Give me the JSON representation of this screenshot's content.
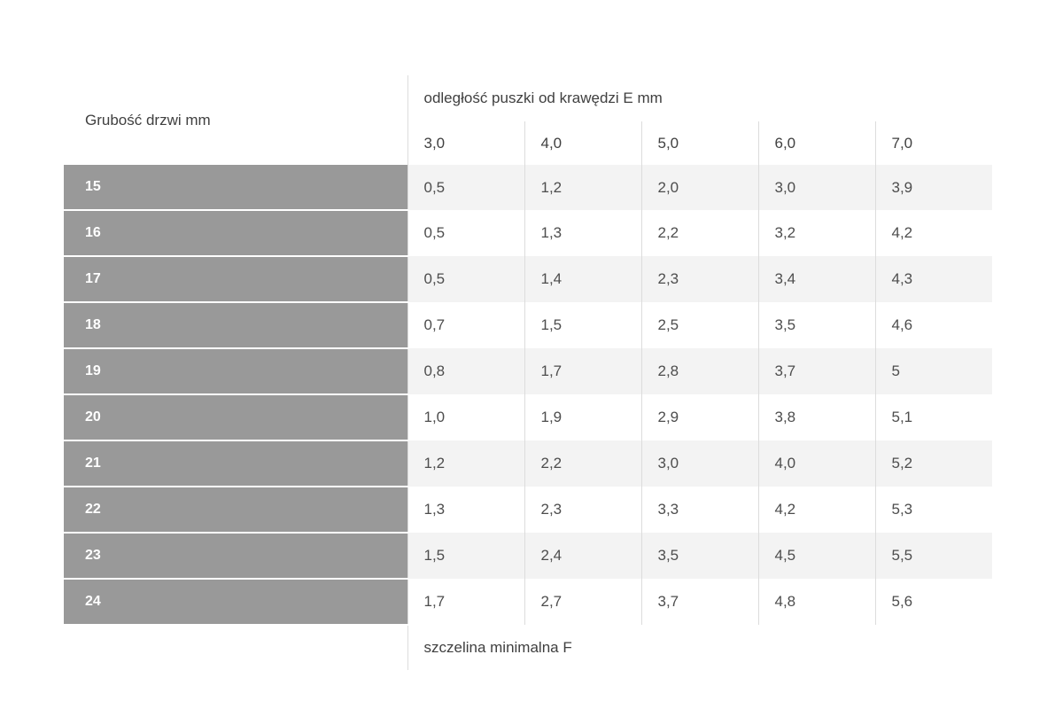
{
  "chart_data": {
    "type": "table",
    "title": "odległość puszki od krawędzi E mm",
    "row_header": "Grubość drzwi mm",
    "columns": [
      "3,0",
      "4,0",
      "5,0",
      "6,0",
      "7,0"
    ],
    "rows": [
      {
        "label": "15",
        "values": [
          "0,5",
          "1,2",
          "2,0",
          "3,0",
          "3,9"
        ]
      },
      {
        "label": "16",
        "values": [
          "0,5",
          "1,3",
          "2,2",
          "3,2",
          "4,2"
        ]
      },
      {
        "label": "17",
        "values": [
          "0,5",
          "1,4",
          "2,3",
          "3,4",
          "4,3"
        ]
      },
      {
        "label": "18",
        "values": [
          "0,7",
          "1,5",
          "2,5",
          "3,5",
          "4,6"
        ]
      },
      {
        "label": "19",
        "values": [
          "0,8",
          "1,7",
          "2,8",
          "3,7",
          "5"
        ]
      },
      {
        "label": "20",
        "values": [
          "1,0",
          "1,9",
          "2,9",
          "3,8",
          "5,1"
        ]
      },
      {
        "label": "21",
        "values": [
          "1,2",
          "2,2",
          "3,0",
          "4,0",
          "5,2"
        ]
      },
      {
        "label": "22",
        "values": [
          "1,3",
          "2,3",
          "3,3",
          "4,2",
          "5,3"
        ]
      },
      {
        "label": "23",
        "values": [
          "1,5",
          "2,4",
          "3,5",
          "4,5",
          "5,5"
        ]
      },
      {
        "label": "24",
        "values": [
          "1,7",
          "2,7",
          "3,7",
          "4,8",
          "5,6"
        ]
      }
    ],
    "footer": "szczelina minimalna F"
  },
  "colors": {
    "row_label_bg": "#999999",
    "stripe_bg": "#f3f3f3",
    "separator": "#dcdcdc",
    "header_text": "#404040",
    "cell_text": "#4d4d4d",
    "row_label_text": "#ffffff",
    "page_bg": "#ffffff"
  }
}
